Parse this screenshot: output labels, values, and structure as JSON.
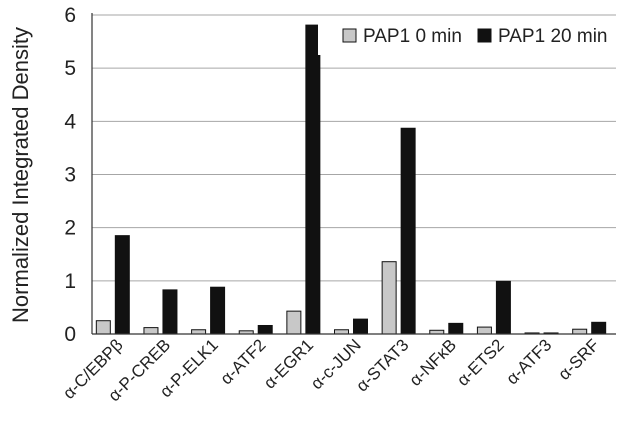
{
  "chart_data": {
    "type": "bar",
    "title": "",
    "xlabel": "",
    "ylabel": "Normalized Integrated Density",
    "ylim": [
      0,
      6
    ],
    "yticks": [
      "0",
      "1",
      "2",
      "3",
      "4",
      "5",
      "6"
    ],
    "grid": true,
    "legend_position": "top-right",
    "categories": [
      "α-C/EBPβ",
      "α-P-CREB",
      "α-P-ELK1",
      "α-ATF2",
      "α-EGR1",
      "α-c-JUN",
      "α-STAT3",
      "α-NFκB",
      "α-ETS2",
      "α-ATF3",
      "α-SRF"
    ],
    "series": [
      {
        "name": "PAP1 0 min",
        "color": "#c8c8c8",
        "values": [
          0.25,
          0.12,
          0.08,
          0.06,
          0.43,
          0.08,
          1.36,
          0.07,
          0.13,
          0.02,
          0.09
        ]
      },
      {
        "name": "PAP1 20 min",
        "color": "#111111",
        "values": [
          1.85,
          0.83,
          0.88,
          0.16,
          5.81,
          0.28,
          3.87,
          0.2,
          0.99,
          0.02,
          0.22
        ]
      }
    ]
  }
}
